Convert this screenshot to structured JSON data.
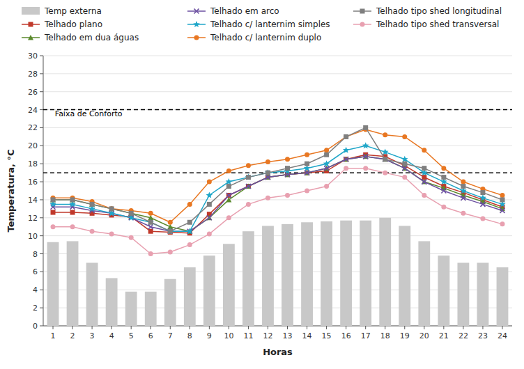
{
  "chart_data": {
    "type": "line",
    "xlabel": "Horas",
    "ylabel": "Temperatura, °C",
    "x": [
      1,
      2,
      3,
      4,
      5,
      6,
      7,
      8,
      9,
      10,
      11,
      12,
      13,
      14,
      15,
      16,
      17,
      18,
      19,
      20,
      21,
      22,
      23,
      24
    ],
    "xlim": [
      0.5,
      24.5
    ],
    "xticks": [
      1,
      2,
      3,
      4,
      5,
      6,
      7,
      8,
      9,
      10,
      11,
      12,
      13,
      14,
      15,
      16,
      17,
      18,
      19,
      20,
      21,
      22,
      23,
      24
    ],
    "ylim": [
      0,
      30
    ],
    "yticks": [
      0,
      2,
      4,
      6,
      8,
      10,
      12,
      14,
      16,
      18,
      20,
      22,
      24,
      26,
      28,
      30
    ],
    "grid": true,
    "legend": "top",
    "series": [
      {
        "name": "Temp externa",
        "type": "bar",
        "color": "#c8c8c8",
        "values": [
          9.3,
          9.4,
          7.0,
          5.3,
          3.8,
          3.8,
          5.2,
          6.5,
          7.8,
          9.1,
          10.5,
          11.1,
          11.3,
          11.5,
          11.6,
          11.7,
          11.7,
          12.0,
          11.1,
          9.4,
          7.8,
          7.0,
          7.0,
          6.5
        ]
      },
      {
        "name": "Telhado plano",
        "type": "line",
        "color": "#c0392b",
        "marker": "square",
        "values": [
          12.6,
          12.6,
          12.5,
          12.3,
          12.1,
          10.5,
          10.4,
          10.3,
          12.4,
          14.5,
          15.5,
          16.5,
          16.8,
          17.0,
          17.2,
          18.5,
          19.0,
          18.8,
          17.8,
          16.5,
          15.5,
          14.8,
          14.0,
          13.2
        ]
      },
      {
        "name": "Telhado em dua águas",
        "type": "line",
        "color": "#5b8a2d",
        "marker": "triangle",
        "values": [
          14.0,
          14.0,
          13.5,
          13.0,
          12.5,
          12.0,
          11.0,
          10.5,
          12.0,
          14.0,
          15.5,
          16.5,
          16.8,
          17.0,
          17.5,
          18.5,
          18.8,
          18.5,
          17.5,
          16.0,
          15.3,
          14.5,
          13.8,
          13.0
        ]
      },
      {
        "name": "Telhado em arco",
        "type": "line",
        "color": "#6b4fa0",
        "marker": "x",
        "values": [
          13.2,
          13.2,
          12.8,
          12.5,
          12.0,
          11.0,
          10.5,
          10.5,
          12.0,
          14.5,
          15.5,
          16.5,
          16.8,
          17.0,
          17.5,
          18.5,
          18.8,
          18.5,
          17.5,
          16.0,
          15.0,
          14.2,
          13.5,
          12.8
        ]
      },
      {
        "name": "Telhado c/ lanternim simples",
        "type": "line",
        "color": "#1fa6c8",
        "marker": "star",
        "values": [
          13.5,
          13.5,
          13.0,
          12.5,
          12.0,
          11.5,
          10.5,
          10.5,
          14.5,
          16.0,
          16.5,
          17.0,
          17.2,
          17.5,
          18.0,
          19.5,
          20.0,
          19.3,
          18.5,
          17.0,
          16.0,
          15.0,
          14.2,
          13.5
        ]
      },
      {
        "name": "Telhado c/ lanternim duplo",
        "type": "line",
        "color": "#e87722",
        "marker": "circle",
        "values": [
          14.2,
          14.2,
          13.8,
          13.0,
          12.8,
          12.5,
          11.5,
          13.5,
          16.0,
          17.2,
          17.8,
          18.2,
          18.5,
          19.0,
          19.5,
          21.0,
          21.8,
          21.2,
          21.0,
          19.5,
          17.5,
          16.0,
          15.2,
          14.5
        ]
      },
      {
        "name": "Telhado tipo shed longitudinal",
        "type": "line",
        "color": "#7f7f7f",
        "marker": "square",
        "values": [
          14.0,
          14.0,
          13.5,
          13.0,
          12.5,
          11.5,
          10.5,
          11.5,
          13.5,
          15.5,
          16.5,
          17.0,
          17.5,
          18.0,
          19.0,
          21.0,
          22.0,
          18.5,
          18.0,
          17.5,
          16.5,
          15.5,
          14.8,
          14.0
        ]
      },
      {
        "name": "Telhado tipo shed transversal",
        "type": "line",
        "color": "#e8a0b0",
        "marker": "circle",
        "values": [
          11.0,
          11.0,
          10.5,
          10.2,
          9.8,
          8.0,
          8.2,
          9.0,
          10.2,
          12.0,
          13.5,
          14.2,
          14.5,
          15.0,
          15.5,
          17.5,
          17.5,
          17.0,
          16.5,
          14.5,
          13.2,
          12.5,
          11.9,
          11.3
        ]
      }
    ],
    "hlines": [
      {
        "value": 24,
        "line_style": "dashed"
      },
      {
        "value": 17,
        "line_style": "dashed"
      }
    ],
    "annotations": [
      {
        "text": "Faixa de Conforto",
        "x": 1.1,
        "y": 23.3
      }
    ]
  }
}
